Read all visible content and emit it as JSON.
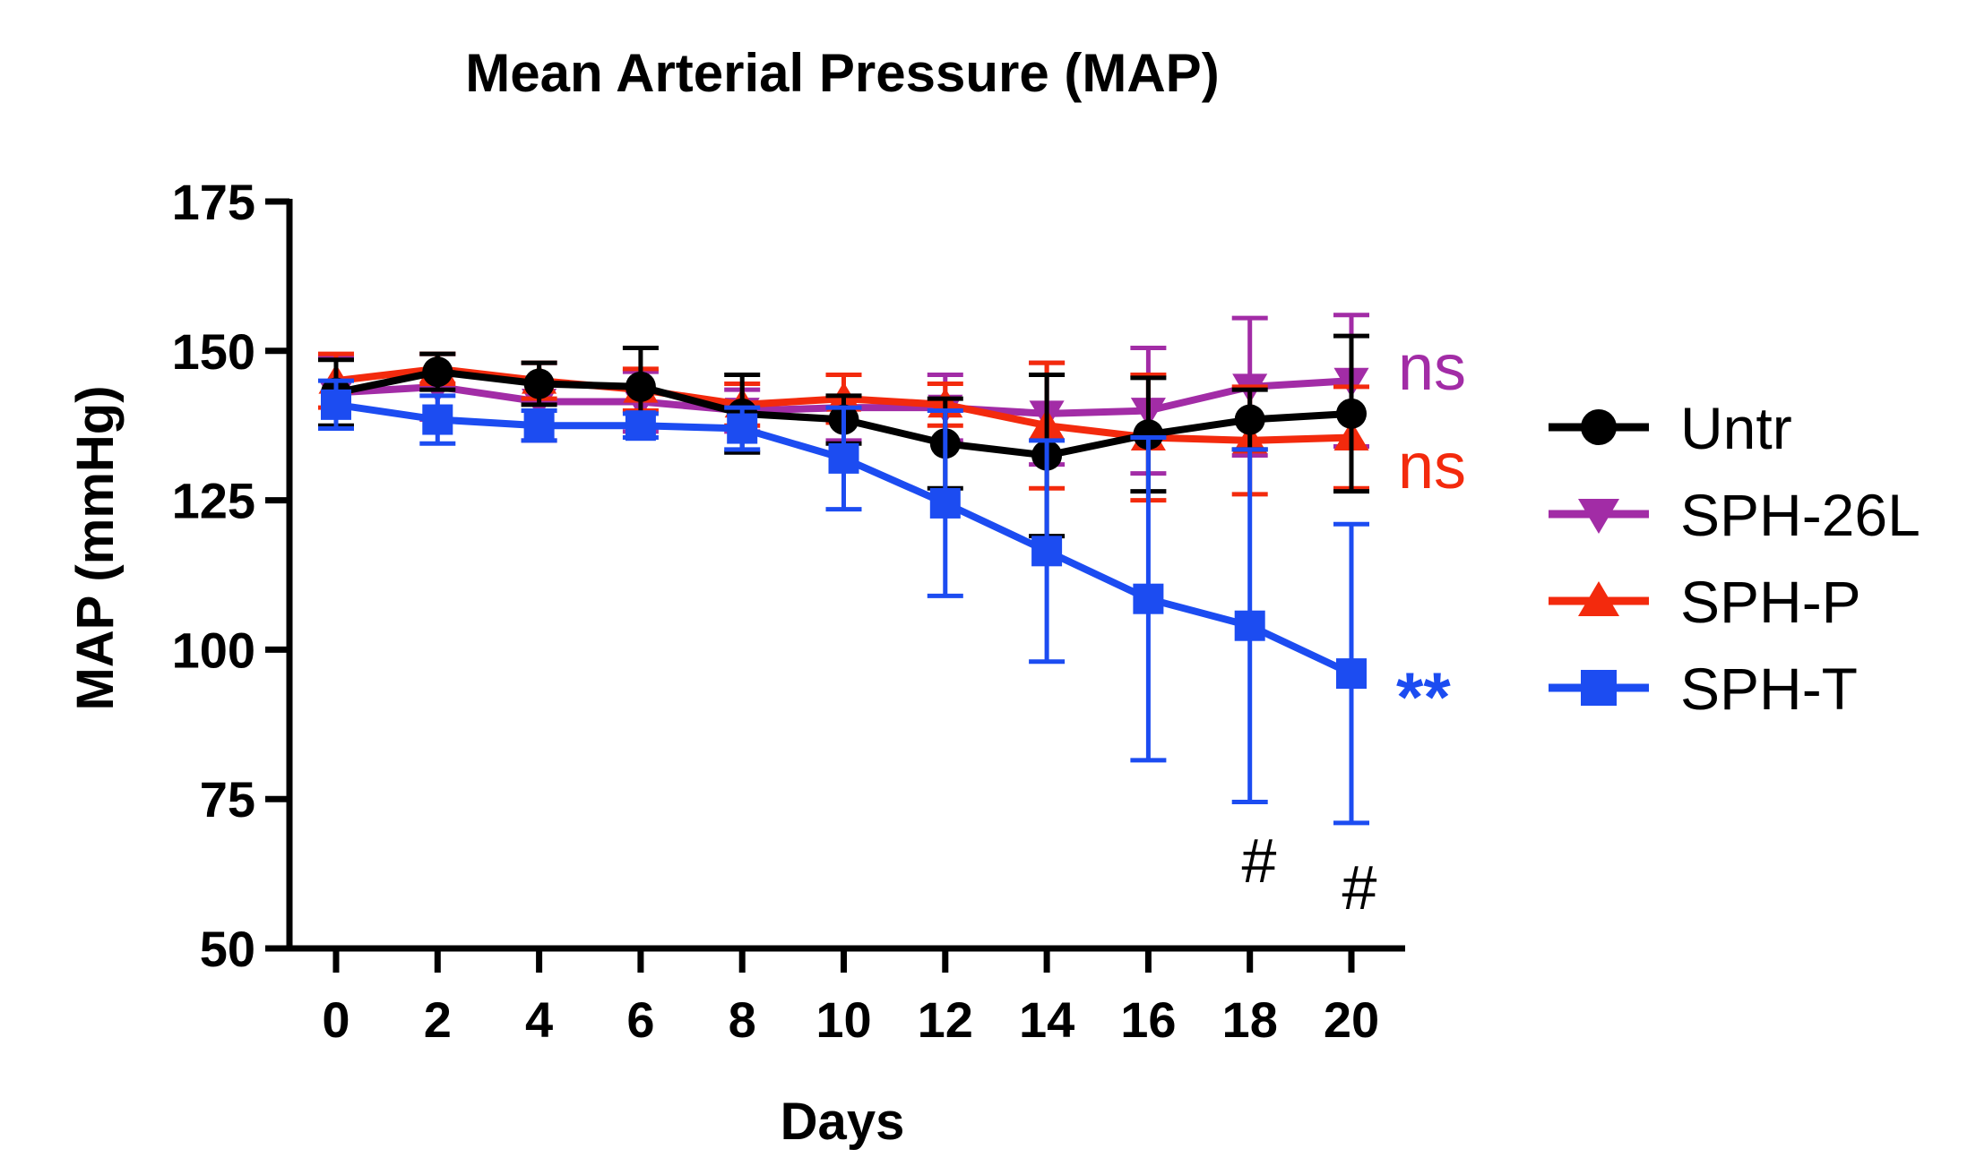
{
  "chart_data": {
    "type": "line",
    "title": "Mean Arterial Pressure (MAP)",
    "xlabel": "Days",
    "ylabel": "MAP (mmHg)",
    "x": [
      0,
      2,
      4,
      6,
      8,
      10,
      12,
      14,
      16,
      18,
      20
    ],
    "xticks": [
      "0",
      "2",
      "4",
      "6",
      "8",
      "10",
      "12",
      "14",
      "16",
      "18",
      "20"
    ],
    "ylim": [
      50,
      175
    ],
    "yticks": [
      "50",
      "75",
      "100",
      "125",
      "150",
      "175"
    ],
    "legend_position": "right",
    "series": [
      {
        "name": "SPH-26L",
        "color": "#a22ca6",
        "marker": "triangle-down",
        "values": [
          143,
          144,
          141.5,
          141.5,
          140,
          140.5,
          140.5,
          139.5,
          140,
          144,
          145
        ],
        "errors": [
          6,
          5.5,
          6.5,
          5,
          3.5,
          5.5,
          5.5,
          8.5,
          10.5,
          11.5,
          11
        ]
      },
      {
        "name": "SPH-P",
        "color": "#f32a0d",
        "marker": "triangle-up",
        "values": [
          145,
          147,
          145,
          143.5,
          141,
          142,
          141,
          137.5,
          135.5,
          135,
          135.5
        ],
        "errors": [
          4.5,
          2.5,
          3,
          3.5,
          3.5,
          4,
          3.5,
          10.5,
          10.5,
          9,
          8.5
        ]
      },
      {
        "name": "Untr",
        "color": "#000000",
        "marker": "circle",
        "values": [
          143,
          146.5,
          144.5,
          144,
          139.5,
          138.5,
          134.5,
          132.5,
          136,
          138.5,
          139.5
        ],
        "errors": [
          5.5,
          3,
          3.5,
          6.5,
          6.5,
          4,
          7.5,
          13.5,
          9.5,
          5,
          13
        ]
      },
      {
        "name": "SPH-T",
        "color": "#1c4cf1",
        "marker": "square",
        "values": [
          141,
          138.5,
          137.5,
          137.5,
          137,
          132,
          124.5,
          116.5,
          108.5,
          104,
          96
        ],
        "errors": [
          4,
          4,
          2.5,
          2,
          3.5,
          8.5,
          15.5,
          18.5,
          27,
          29.5,
          25
        ]
      }
    ],
    "legend_order": [
      "Untr",
      "SPH-26L",
      "SPH-P",
      "SPH-T"
    ],
    "annotations": {
      "sph26l": {
        "text": "ns",
        "color": "#a22ca6"
      },
      "sphp": {
        "text": "ns",
        "color": "#f32a0d"
      },
      "spht": {
        "text": "**",
        "color": "#1c4cf1"
      },
      "hash18": {
        "text": "#",
        "x": 18
      },
      "hash20": {
        "text": "#",
        "x": 20
      }
    }
  }
}
